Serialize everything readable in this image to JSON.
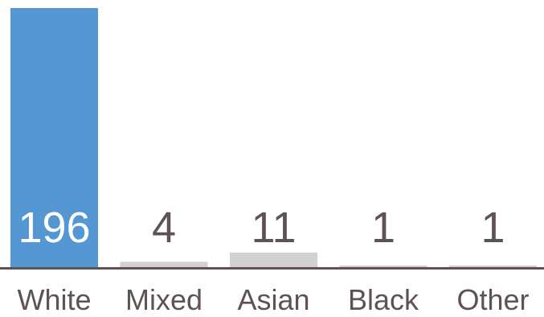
{
  "chart_data": {
    "type": "bar",
    "title": "",
    "xlabel": "",
    "ylabel": "",
    "categories": [
      "White",
      "Mixed",
      "Asian",
      "Black",
      "Other"
    ],
    "values": [
      196,
      4,
      11,
      1,
      1
    ],
    "value_labels": [
      "196",
      "4",
      "11",
      "1",
      "1"
    ],
    "ylim": [
      0,
      196
    ],
    "grid": false,
    "legend": "none",
    "colors": {
      "highlight_bar": "#5597d3",
      "other_bars": "#d1d1d1",
      "baseline": "#5e5352",
      "highlight_label": "#ffffff",
      "value_label": "#5e5352",
      "category_label": "#5e5352"
    }
  }
}
